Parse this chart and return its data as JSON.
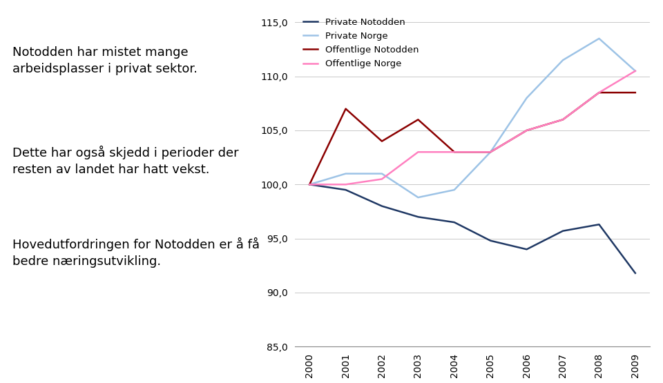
{
  "years": [
    2000,
    2001,
    2002,
    2003,
    2004,
    2005,
    2006,
    2007,
    2008,
    2009
  ],
  "private_notodden": [
    100.0,
    99.5,
    98.0,
    97.0,
    96.5,
    94.8,
    94.0,
    95.7,
    96.3,
    91.8
  ],
  "private_norge": [
    100.0,
    101.0,
    101.0,
    98.8,
    99.5,
    103.0,
    108.0,
    111.5,
    113.5,
    110.5
  ],
  "offentlige_notodden": [
    100.0,
    107.0,
    104.0,
    106.0,
    103.0,
    103.0,
    105.0,
    106.0,
    108.5,
    108.5
  ],
  "offentlige_norge": [
    100.0,
    100.0,
    100.5,
    103.0,
    103.0,
    103.0,
    105.0,
    106.0,
    108.5,
    110.5
  ],
  "color_private_notodden": "#1f3864",
  "color_private_norge": "#9dc3e6",
  "color_offentlige_notodden": "#8b0000",
  "color_offentlige_norge": "#ff80c0",
  "ylim": [
    85,
    116
  ],
  "yticks": [
    85.0,
    90.0,
    95.0,
    100.0,
    105.0,
    110.0,
    115.0
  ],
  "legend_labels": [
    "Private Notodden",
    "Private Norge",
    "Offentlige Notodden",
    "Offentlige Norge"
  ],
  "text_lines": [
    "Notodden har mistet mange\narbeidsplasser i privat sektor.",
    "Dette har også skjedd i perioder der\nresten av landet har hatt vekst.",
    "Hovedutfordringen for Notodden er å få\nbedre næringsutvikling."
  ],
  "background_color": "#ffffff",
  "linewidth": 1.8,
  "text_fontsize": 13.0,
  "tick_fontsize": 10,
  "legend_fontsize": 9.5
}
